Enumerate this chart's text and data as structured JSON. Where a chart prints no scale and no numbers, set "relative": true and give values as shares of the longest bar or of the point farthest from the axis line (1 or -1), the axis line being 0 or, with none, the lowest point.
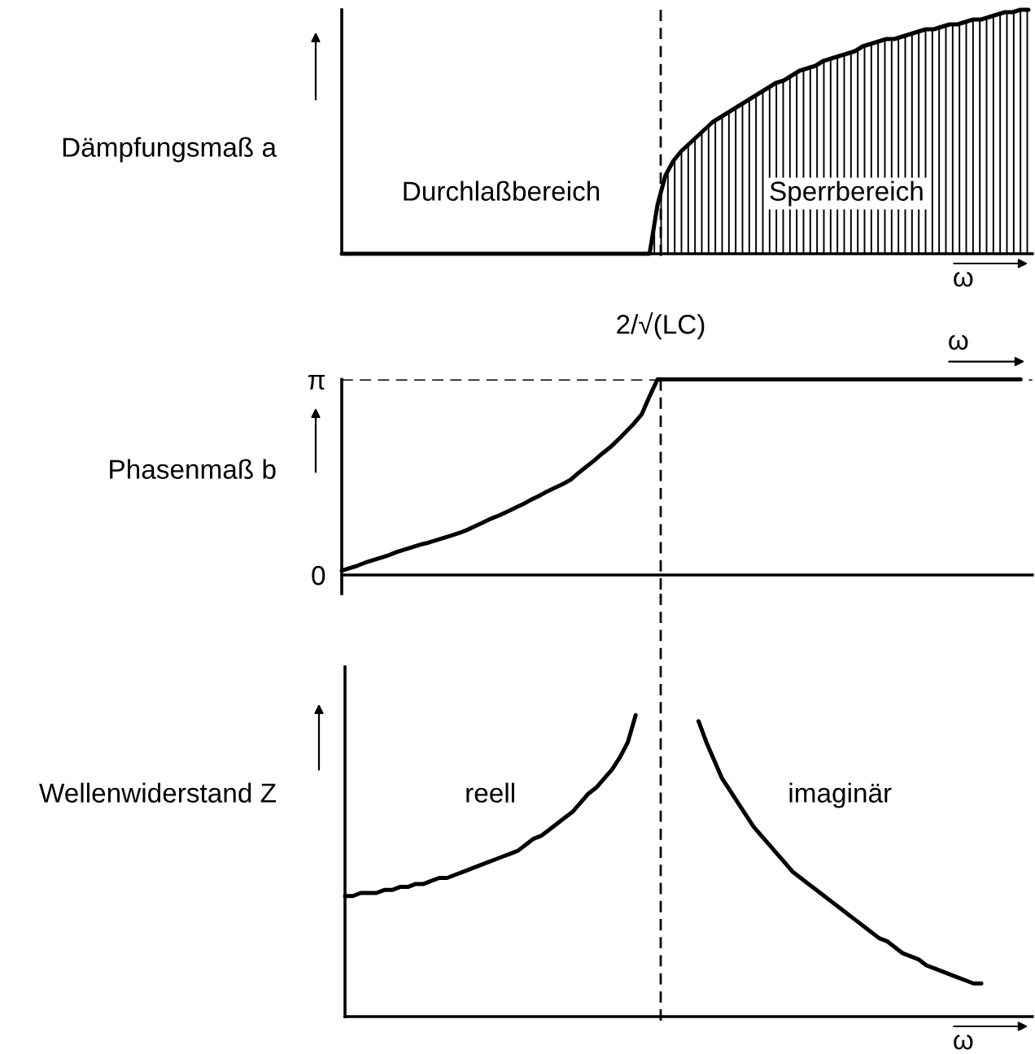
{
  "chart_data": [
    {
      "type": "area",
      "relative": true,
      "ylabel": "Dämpfungsmaß a",
      "xlabel": "ω",
      "categories": [
        null,
        null,
        null,
        null,
        null,
        null,
        null,
        null,
        null,
        null,
        null,
        null,
        null,
        null,
        null,
        null,
        null,
        null,
        null,
        null,
        null,
        null,
        null,
        null,
        null,
        null,
        null,
        null,
        null,
        null,
        null,
        null,
        null,
        null,
        null,
        null,
        null,
        null,
        null,
        null,
        null,
        null,
        null,
        null,
        null,
        null,
        null,
        null,
        null,
        null,
        null,
        null,
        null,
        null,
        null,
        null,
        null,
        null,
        null,
        null,
        null,
        null,
        null,
        null,
        null,
        null,
        null,
        null,
        null,
        null,
        null,
        null,
        null,
        null,
        null,
        null,
        null,
        null,
        null,
        null,
        null,
        null,
        null,
        null,
        null,
        null,
        null,
        null
      ],
      "annotations": [
        "Durchlaßbereich",
        "Sperrbereich"
      ],
      "series": [
        {
          "color": "#000000",
          "values": [
            0,
            0,
            0,
            0,
            0,
            0,
            0,
            0,
            0,
            0,
            0,
            0,
            0,
            0,
            0,
            0,
            0,
            0,
            0,
            0,
            0,
            0,
            0,
            0,
            0,
            0,
            0,
            0,
            0,
            0,
            0,
            0,
            0,
            0,
            0,
            0,
            0,
            0,
            0,
            0,
            0.2,
            0.32,
            0.38,
            0.42,
            0.45,
            0.48,
            0.51,
            0.54,
            0.56,
            0.58,
            0.6,
            0.62,
            0.64,
            0.66,
            0.68,
            0.7,
            0.71,
            0.73,
            0.75,
            0.76,
            0.77,
            0.79,
            0.8,
            0.81,
            0.82,
            0.83,
            0.85,
            0.86,
            0.87,
            0.88,
            0.88,
            0.89,
            0.9,
            0.91,
            0.92,
            0.92,
            0.93,
            0.94,
            0.94,
            0.95,
            0.96,
            0.96,
            0.97,
            0.98,
            0.99,
            0.99,
            1.0,
            1.0
          ]
        }
      ]
    },
    {
      "type": "line",
      "ylabel": "Phasenmaß b",
      "x2label": "ω",
      "ylim": [
        -0.3,
        3.14
      ],
      "yticks": [
        0,
        {
          "value": 3.14,
          "label": "π"
        }
      ],
      "categories": [
        null,
        null,
        null,
        null,
        null,
        null,
        null,
        null,
        null,
        null,
        null,
        null,
        null,
        null,
        null,
        null,
        null,
        null,
        null,
        null,
        null,
        null,
        null,
        null,
        null,
        null,
        null,
        null,
        null,
        null,
        null,
        null,
        null,
        null,
        null,
        null,
        null,
        null,
        null,
        null,
        null,
        null,
        null,
        null,
        null,
        null,
        null,
        null,
        null,
        null,
        null,
        null,
        null,
        null,
        null,
        null,
        null,
        null,
        null,
        null,
        null,
        null,
        null,
        null,
        null,
        null,
        null,
        null,
        null,
        null,
        null,
        null,
        null,
        null,
        null,
        null,
        null,
        null,
        null,
        null,
        null,
        null,
        null,
        null,
        null,
        null,
        null,
        null
      ],
      "annotations": [
        "2/√(LC)"
      ],
      "ref_lines": [
        {
          "axis": "y",
          "value": 3.14,
          "line_style": "dashed"
        }
      ],
      "series": [
        {
          "color": "#000000",
          "values": [
            0.07,
            0.11,
            0.15,
            0.2,
            0.24,
            0.28,
            0.32,
            0.37,
            0.41,
            0.45,
            0.49,
            0.52,
            0.56,
            0.6,
            0.64,
            0.68,
            0.73,
            0.79,
            0.85,
            0.91,
            0.96,
            1.02,
            1.08,
            1.14,
            1.21,
            1.27,
            1.34,
            1.4,
            1.46,
            1.53,
            1.64,
            1.74,
            1.84,
            1.95,
            2.05,
            2.17,
            2.3,
            2.43,
            2.58,
            2.87,
            3.14,
            3.14,
            3.14,
            3.14,
            3.14,
            3.14,
            3.14,
            3.14,
            3.14,
            3.14,
            3.14,
            3.14,
            3.14,
            3.14,
            3.14,
            3.14,
            3.14,
            3.14,
            3.14,
            3.14,
            3.14,
            3.14,
            3.14,
            3.14,
            3.14,
            3.14,
            3.14,
            3.14,
            3.14,
            3.14,
            3.14,
            3.14,
            3.14,
            3.14,
            3.14,
            3.14,
            3.14,
            3.14,
            3.14,
            3.14,
            3.14,
            3.14,
            3.14,
            3.14,
            3.14,
            3.14,
            3.14,
            null
          ]
        }
      ]
    },
    {
      "type": "line",
      "relative": true,
      "ylabel": "Wellenwiderstand Z",
      "xlabel": "ω",
      "categories": [
        null,
        null,
        null,
        null,
        null,
        null,
        null,
        null,
        null,
        null,
        null,
        null,
        null,
        null,
        null,
        null,
        null,
        null,
        null,
        null,
        null,
        null,
        null,
        null,
        null,
        null,
        null,
        null,
        null,
        null,
        null,
        null,
        null,
        null,
        null,
        null,
        null,
        null,
        null,
        null,
        null,
        null,
        null,
        null,
        null,
        null,
        null,
        null,
        null,
        null,
        null,
        null,
        null,
        null,
        null,
        null,
        null,
        null,
        null,
        null,
        null,
        null,
        null,
        null,
        null,
        null,
        null,
        null,
        null,
        null,
        null,
        null,
        null,
        null,
        null,
        null,
        null,
        null,
        null,
        null,
        null,
        null,
        null,
        null,
        null,
        null,
        null,
        null
      ],
      "series": [
        {
          "name": "reell",
          "color": "#000000",
          "values": [
            0.4,
            0.4,
            0.41,
            0.41,
            0.41,
            0.42,
            0.42,
            0.43,
            0.43,
            0.44,
            0.44,
            0.45,
            0.46,
            0.46,
            0.47,
            0.48,
            0.49,
            0.5,
            0.51,
            0.52,
            0.53,
            0.54,
            0.55,
            0.57,
            0.59,
            0.6,
            0.62,
            0.64,
            0.66,
            0.68,
            0.71,
            0.74,
            0.76,
            0.79,
            0.82,
            0.86,
            0.91,
            1.0,
            null,
            null,
            null,
            null,
            null,
            null,
            null,
            null,
            null,
            null,
            null,
            null,
            null,
            null,
            null,
            null,
            null,
            null,
            null,
            null,
            null,
            null,
            null,
            null,
            null,
            null,
            null,
            null,
            null,
            null,
            null,
            null,
            null,
            null,
            null,
            null,
            null,
            null,
            null,
            null,
            null,
            null,
            null,
            null,
            null,
            null,
            null,
            null,
            null,
            null
          ]
        },
        {
          "name": "imaginär",
          "color": "#000000",
          "values": [
            null,
            null,
            null,
            null,
            null,
            null,
            null,
            null,
            null,
            null,
            null,
            null,
            null,
            null,
            null,
            null,
            null,
            null,
            null,
            null,
            null,
            null,
            null,
            null,
            null,
            null,
            null,
            null,
            null,
            null,
            null,
            null,
            null,
            null,
            null,
            null,
            null,
            null,
            null,
            null,
            null,
            null,
            null,
            null,
            null,
            0.98,
            0.91,
            0.85,
            0.79,
            0.75,
            0.71,
            0.67,
            0.63,
            0.6,
            0.57,
            0.54,
            0.51,
            0.48,
            0.46,
            0.44,
            0.42,
            0.4,
            0.38,
            0.36,
            0.34,
            0.32,
            0.3,
            0.28,
            0.26,
            0.25,
            0.23,
            0.21,
            0.2,
            0.19,
            0.17,
            0.16,
            0.15,
            0.14,
            0.13,
            0.12,
            0.11,
            0.11,
            null,
            null,
            null,
            null,
            null,
            null
          ]
        }
      ]
    }
  ]
}
